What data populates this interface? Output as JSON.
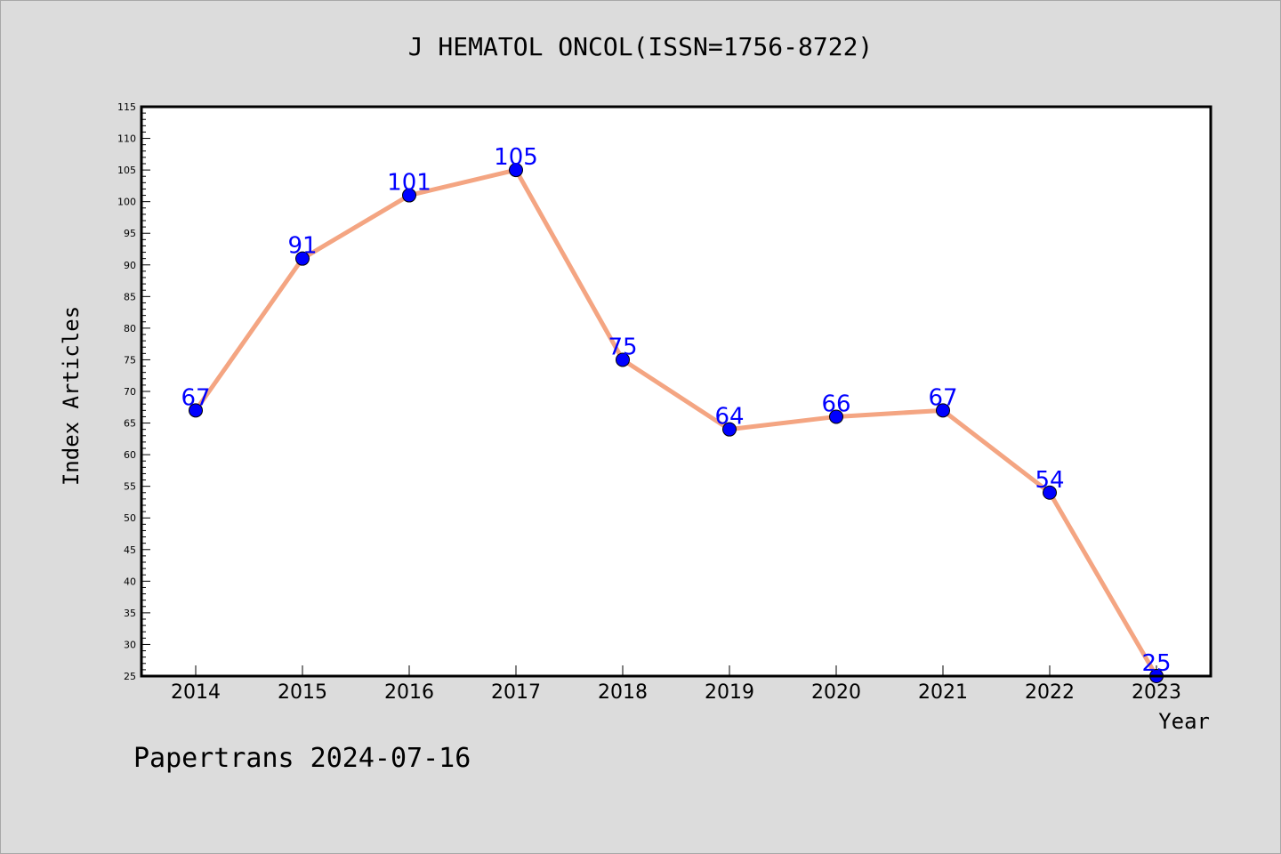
{
  "chart_data": {
    "type": "line",
    "title": "J HEMATOL ONCOL(ISSN=1756-8722)",
    "xlabel": "Year",
    "ylabel": "Index Articles",
    "categories": [
      "2014",
      "2015",
      "2016",
      "2017",
      "2018",
      "2019",
      "2020",
      "2021",
      "2022",
      "2023"
    ],
    "series": [
      {
        "values": [
          67,
          91,
          101,
          105,
          75,
          64,
          66,
          67,
          54,
          25
        ]
      }
    ],
    "ylim": [
      25,
      115
    ],
    "ytick_step": 5,
    "data_labels": true,
    "grid": false,
    "colors": {
      "line": "#f4a582",
      "marker": "#0000ff",
      "label": "#0000ff",
      "background": "#dcdcdc",
      "plot_background": "#ffffff"
    }
  },
  "footer": "Papertrans 2024-07-16"
}
